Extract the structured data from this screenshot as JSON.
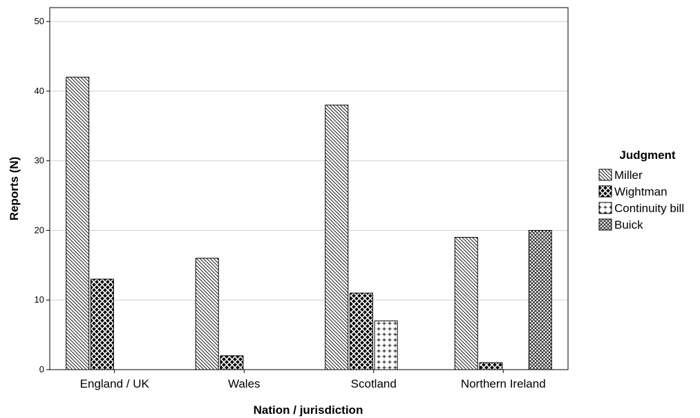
{
  "chart_data": {
    "type": "bar",
    "xlabel": "Nation / jurisdiction",
    "ylabel": "Reports (N)",
    "ylim": [
      0,
      52
    ],
    "yticks": [
      0,
      10,
      20,
      30,
      40,
      50
    ],
    "grid": true,
    "legend_title": "Judgment",
    "legend_position": "right",
    "categories": [
      "England / UK",
      "Wales",
      "Scotland",
      "Northern Ireland"
    ],
    "series": [
      {
        "name": "Miller",
        "pattern": "diagonal",
        "values": [
          42,
          16,
          38,
          19
        ]
      },
      {
        "name": "Wightman",
        "pattern": "dark-crosshatch",
        "values": [
          13,
          2,
          11,
          1
        ]
      },
      {
        "name": "Continuity bill",
        "pattern": "plus",
        "values": [
          0,
          0,
          7,
          0
        ]
      },
      {
        "name": "Buick",
        "pattern": "light-crosshatch",
        "values": [
          0,
          0,
          0,
          20
        ]
      }
    ]
  }
}
